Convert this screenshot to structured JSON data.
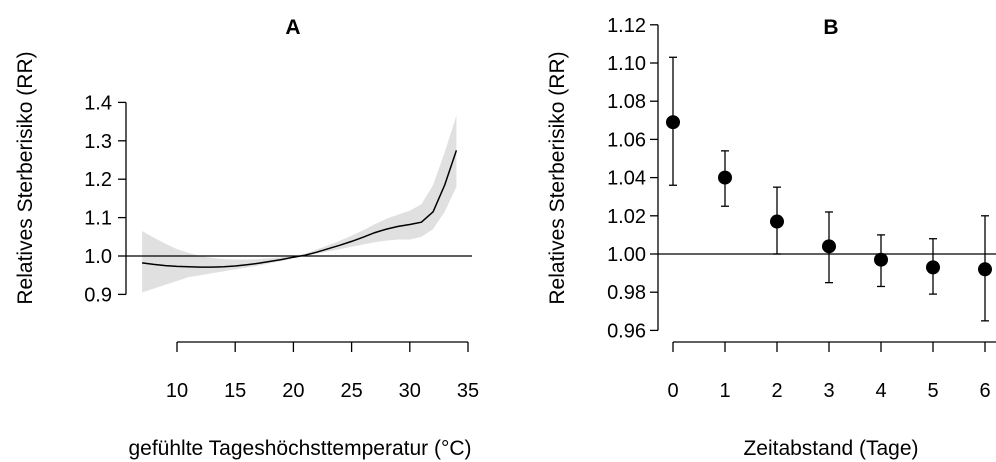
{
  "colors": {
    "band": "#e0e0e0",
    "line": "#000000",
    "point": "#000000"
  },
  "chart_data": [
    {
      "panel": "A",
      "type": "line",
      "title": "A",
      "xlabel": "gefühlte Tageshöchsttemperatur (°C)",
      "ylabel": "Relatives Sterberisiko (RR)",
      "xlim": [
        7,
        34.5
      ],
      "ylim": [
        0.9,
        1.4
      ],
      "x_ticks": [
        "10",
        "15",
        "20",
        "25",
        "30",
        "35"
      ],
      "y_ticks": [
        "0.9",
        "1.0",
        "1.1",
        "1.2",
        "1.3",
        "1.4"
      ],
      "reference_line": 1.0,
      "series": [
        {
          "x": [
            7,
            8,
            9,
            10,
            11,
            12,
            13,
            14,
            15,
            16,
            17,
            18,
            19,
            20,
            21,
            22,
            23,
            24,
            25,
            26,
            27,
            28,
            29,
            30,
            31,
            32,
            33,
            34
          ],
          "y": [
            0.982,
            0.978,
            0.975,
            0.973,
            0.972,
            0.971,
            0.971,
            0.972,
            0.974,
            0.977,
            0.981,
            0.986,
            0.991,
            0.997,
            1.002,
            1.01,
            1.019,
            1.028,
            1.038,
            1.049,
            1.061,
            1.07,
            1.077,
            1.082,
            1.088,
            1.115,
            1.185,
            1.275
          ],
          "lower": [
            0.905,
            0.915,
            0.925,
            0.935,
            0.945,
            0.95,
            0.955,
            0.96,
            0.965,
            0.97,
            0.975,
            0.981,
            0.987,
            0.994,
            1.0,
            1.006,
            1.012,
            1.018,
            1.024,
            1.03,
            1.036,
            1.04,
            1.043,
            1.043,
            1.05,
            1.07,
            1.115,
            1.18
          ],
          "upper": [
            1.065,
            1.048,
            1.032,
            1.018,
            1.008,
            1.0,
            0.995,
            0.992,
            0.991,
            0.991,
            0.992,
            0.994,
            0.997,
            1.0,
            1.006,
            1.017,
            1.028,
            1.04,
            1.053,
            1.067,
            1.083,
            1.097,
            1.108,
            1.118,
            1.135,
            1.185,
            1.27,
            1.365
          ]
        }
      ]
    },
    {
      "panel": "B",
      "type": "scatter",
      "title": "B",
      "xlabel": "Zeitabstand (Tage)",
      "ylabel": "Relatives Sterberisiko (RR)",
      "xlim": [
        0,
        6
      ],
      "ylim": [
        0.96,
        1.12
      ],
      "x_ticks": [
        "0",
        "1",
        "2",
        "3",
        "4",
        "5",
        "6"
      ],
      "y_ticks": [
        "0.96",
        "0.98",
        "1.00",
        "1.02",
        "1.04",
        "1.06",
        "1.08",
        "1.10",
        "1.12"
      ],
      "reference_line": 1.0,
      "series": [
        {
          "x": [
            0,
            1,
            2,
            3,
            4,
            5,
            6
          ],
          "y": [
            1.069,
            1.04,
            1.017,
            1.004,
            0.997,
            0.993,
            0.992
          ],
          "lower": [
            1.036,
            1.025,
            1.0,
            0.985,
            0.983,
            0.979,
            0.965
          ],
          "upper": [
            1.103,
            1.054,
            1.035,
            1.022,
            1.01,
            1.008,
            1.02
          ]
        }
      ]
    }
  ]
}
